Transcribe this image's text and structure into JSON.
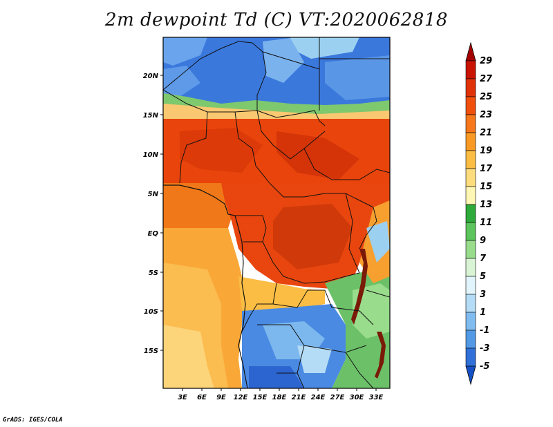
{
  "title": "2m dewpoint Td (C) VT:2020062818",
  "credit": "GrADS: IGES/COLA",
  "lat_labels": [
    "20N",
    "15N",
    "10N",
    "5N",
    "EQ",
    "5S",
    "10S",
    "15S"
  ],
  "lon_labels": [
    "3E",
    "6E",
    "9E",
    "12E",
    "15E",
    "18E",
    "21E",
    "24E",
    "27E",
    "30E",
    "33E"
  ],
  "colorbar": {
    "labels": [
      "29",
      "27",
      "25",
      "23",
      "21",
      "19",
      "17",
      "15",
      "13",
      "11",
      "9",
      "7",
      "5",
      "3",
      "1",
      "-1",
      "-3",
      "-5"
    ],
    "colors": [
      "#a50000",
      "#c81400",
      "#e03208",
      "#f0500c",
      "#f7781a",
      "#f99a24",
      "#fbbd44",
      "#fcdc7c",
      "#fef6b4",
      "#2eaa3a",
      "#5cc45c",
      "#98dc8c",
      "#d8f4d4",
      "#e2f4fc",
      "#b4dcf6",
      "#80bcf0",
      "#529ae6",
      "#3070d8",
      "#1450c4"
    ]
  },
  "map_colors": {
    "sahara": "#3a78dc",
    "sahel": "#7ec86e",
    "west_africa": "#e8440c",
    "central": "#d83c0c",
    "gulf": "#f07818",
    "atlantic_south": "#f9a838",
    "atlantic_far": "#fcd47a",
    "southern_africa": "#4a8ae2",
    "east_green": "#6cc068",
    "lake_stripe": "#7a1a08"
  }
}
